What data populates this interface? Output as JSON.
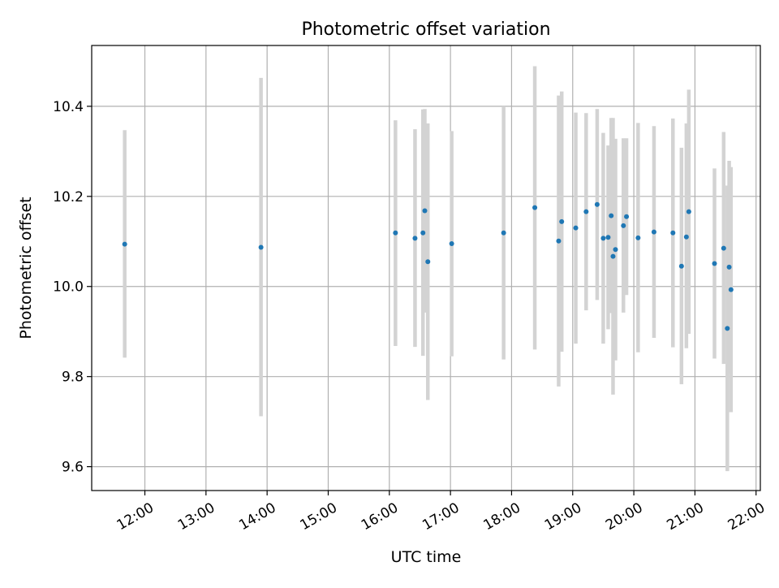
{
  "chart_data": {
    "type": "scatter",
    "title": "Photometric offset variation",
    "xlabel": "UTC time",
    "ylabel": "Photometric offset",
    "x_unit": "hour",
    "xlim": [
      11.13,
      22.07
    ],
    "ylim": [
      9.547,
      10.535
    ],
    "x_ticks": [
      {
        "value": 12,
        "label": "12:00"
      },
      {
        "value": 13,
        "label": "13:00"
      },
      {
        "value": 14,
        "label": "14:00"
      },
      {
        "value": 15,
        "label": "15:00"
      },
      {
        "value": 16,
        "label": "16:00"
      },
      {
        "value": 17,
        "label": "17:00"
      },
      {
        "value": 18,
        "label": "18:00"
      },
      {
        "value": 19,
        "label": "19:00"
      },
      {
        "value": 20,
        "label": "20:00"
      },
      {
        "value": 21,
        "label": "21:00"
      },
      {
        "value": 22,
        "label": "22:00"
      }
    ],
    "y_ticks": [
      {
        "value": 9.6,
        "label": "9.6"
      },
      {
        "value": 9.8,
        "label": "9.8"
      },
      {
        "value": 10.0,
        "label": "10.0"
      },
      {
        "value": 10.2,
        "label": "10.2"
      },
      {
        "value": 10.4,
        "label": "10.4"
      }
    ],
    "grid": true,
    "colors": {
      "marker": "#1f77b4",
      "errorbar": "#d3d3d3",
      "grid": "#b0b0b0"
    },
    "points": [
      {
        "x": 11.67,
        "y": 10.094,
        "ylo": 9.842,
        "yhi": 10.347
      },
      {
        "x": 13.9,
        "y": 10.087,
        "ylo": 9.712,
        "yhi": 10.463
      },
      {
        "x": 16.1,
        "y": 10.119,
        "ylo": 9.868,
        "yhi": 10.369
      },
      {
        "x": 16.42,
        "y": 10.107,
        "ylo": 9.866,
        "yhi": 10.349
      },
      {
        "x": 16.55,
        "y": 10.119,
        "ylo": 9.846,
        "yhi": 10.393
      },
      {
        "x": 16.58,
        "y": 10.168,
        "ylo": 9.942,
        "yhi": 10.394
      },
      {
        "x": 16.63,
        "y": 10.055,
        "ylo": 9.748,
        "yhi": 10.362
      },
      {
        "x": 17.02,
        "y": 10.095,
        "ylo": 9.845,
        "yhi": 10.345
      },
      {
        "x": 17.87,
        "y": 10.119,
        "ylo": 9.838,
        "yhi": 10.4
      },
      {
        "x": 18.38,
        "y": 10.175,
        "ylo": 9.86,
        "yhi": 10.489
      },
      {
        "x": 18.77,
        "y": 10.101,
        "ylo": 9.778,
        "yhi": 10.424
      },
      {
        "x": 18.82,
        "y": 10.144,
        "ylo": 9.855,
        "yhi": 10.433
      },
      {
        "x": 19.05,
        "y": 10.13,
        "ylo": 9.873,
        "yhi": 10.386
      },
      {
        "x": 19.22,
        "y": 10.166,
        "ylo": 9.947,
        "yhi": 10.385
      },
      {
        "x": 19.4,
        "y": 10.182,
        "ylo": 9.97,
        "yhi": 10.394
      },
      {
        "x": 19.5,
        "y": 10.107,
        "ylo": 9.873,
        "yhi": 10.341
      },
      {
        "x": 19.58,
        "y": 10.109,
        "ylo": 9.905,
        "yhi": 10.313
      },
      {
        "x": 19.63,
        "y": 10.157,
        "ylo": 9.941,
        "yhi": 10.374
      },
      {
        "x": 19.66,
        "y": 10.067,
        "ylo": 9.76,
        "yhi": 10.374
      },
      {
        "x": 19.7,
        "y": 10.082,
        "ylo": 9.836,
        "yhi": 10.328
      },
      {
        "x": 19.83,
        "y": 10.135,
        "ylo": 9.942,
        "yhi": 10.329
      },
      {
        "x": 19.88,
        "y": 10.155,
        "ylo": 9.981,
        "yhi": 10.329
      },
      {
        "x": 20.07,
        "y": 10.108,
        "ylo": 9.854,
        "yhi": 10.363
      },
      {
        "x": 20.33,
        "y": 10.121,
        "ylo": 9.886,
        "yhi": 10.356
      },
      {
        "x": 20.64,
        "y": 10.119,
        "ylo": 9.865,
        "yhi": 10.373
      },
      {
        "x": 20.78,
        "y": 10.045,
        "ylo": 9.783,
        "yhi": 10.308
      },
      {
        "x": 20.86,
        "y": 10.11,
        "ylo": 9.863,
        "yhi": 10.362
      },
      {
        "x": 20.9,
        "y": 10.166,
        "ylo": 9.895,
        "yhi": 10.437
      },
      {
        "x": 21.32,
        "y": 10.051,
        "ylo": 9.84,
        "yhi": 10.262
      },
      {
        "x": 21.47,
        "y": 10.085,
        "ylo": 9.828,
        "yhi": 10.343
      },
      {
        "x": 21.53,
        "y": 9.907,
        "ylo": 9.59,
        "yhi": 10.224
      },
      {
        "x": 21.56,
        "y": 10.043,
        "ylo": 9.807,
        "yhi": 10.279
      },
      {
        "x": 21.59,
        "y": 9.993,
        "ylo": 9.721,
        "yhi": 10.265
      }
    ]
  }
}
